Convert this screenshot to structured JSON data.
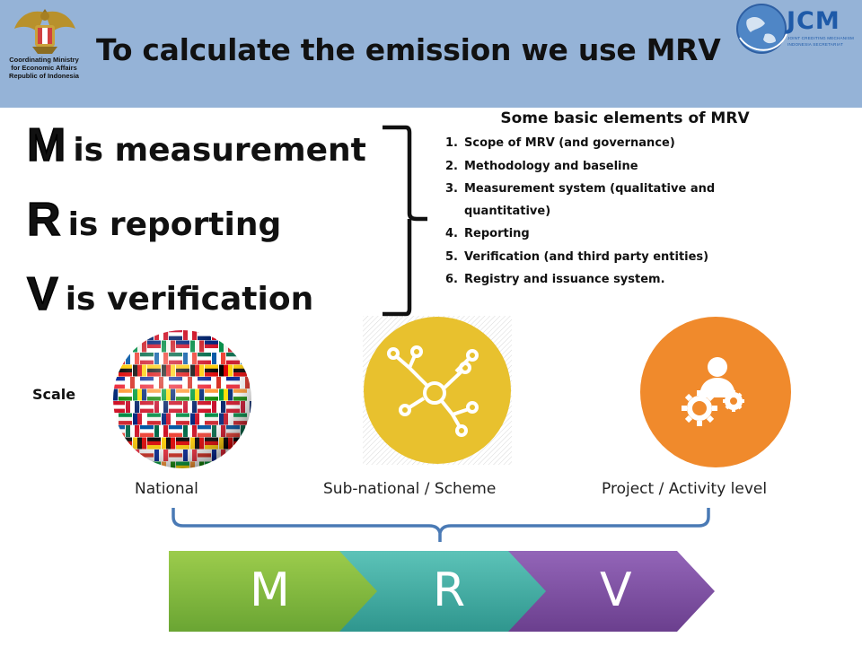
{
  "header": {
    "title": "To calculate the emission we use MRV",
    "gov_caption": [
      "Coordinating Ministry",
      "for Economic Affairs",
      "Republic of Indonesia"
    ],
    "jcm_text": "JCM",
    "jcm_subtitle_1": "JOINT CREDITING MECHANISM",
    "jcm_subtitle_2": "INDONESIA SECRETARIAT"
  },
  "definitions": [
    {
      "letter": "M",
      "text": "is measurement"
    },
    {
      "letter": "R",
      "text": "is reporting"
    },
    {
      "letter": "V",
      "text": "is verification"
    }
  ],
  "elements": {
    "title": "Some basic elements of MRV",
    "items": [
      {
        "num": "1.",
        "text": "Scope of MRV (and governance)"
      },
      {
        "num": "2.",
        "text": "Methodology and baseline"
      },
      {
        "num": "3.",
        "text": "Measurement system (qualitative and quantitative)"
      },
      {
        "num": "4.",
        "text": "Reporting"
      },
      {
        "num": "5.",
        "text": "Verification (and third party entities)"
      },
      {
        "num": "6.",
        "text": "Registry and issuance system."
      }
    ]
  },
  "scale": {
    "label": "Scale",
    "levels": [
      "National",
      "Sub-national / Scheme",
      "Project / Activity level"
    ]
  },
  "process": {
    "segments": [
      "M",
      "R",
      "V"
    ],
    "colors": [
      "#7cb342",
      "#3ea9a0",
      "#7b4e9e"
    ]
  },
  "icons": {
    "globe": "globe-of-flags-icon",
    "network": "network-nodes-icon",
    "project": "person-with-gears-icon"
  }
}
